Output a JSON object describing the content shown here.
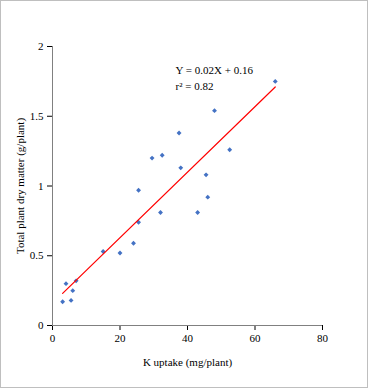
{
  "chart_data": {
    "type": "scatter",
    "x_label": "K uptake (mg/plant)",
    "y_label": "Total plant dry matter (g/plant)",
    "annotations": [
      "Y = 0.02X + 0.16",
      "r² = 0.82"
    ],
    "xlim": [
      0,
      80
    ],
    "xticks": [
      0,
      20,
      40,
      60,
      80
    ],
    "ylim": [
      0,
      2
    ],
    "yticks": [
      0,
      0.5,
      1,
      1.5,
      2
    ],
    "grid": false,
    "series": [
      {
        "type": "scatter",
        "color": "#4472c4",
        "marker": "diamond",
        "x": [
          3,
          4,
          5.5,
          6,
          7,
          15,
          20,
          24,
          25.5,
          25.5,
          29.5,
          32,
          32.5,
          37.5,
          38,
          43,
          45.5,
          46,
          48,
          52.5,
          66
        ],
        "values": [
          0.17,
          0.3,
          0.18,
          0.25,
          0.32,
          0.53,
          0.52,
          0.59,
          0.74,
          0.97,
          1.2,
          0.81,
          1.22,
          1.38,
          1.13,
          0.81,
          1.08,
          0.92,
          1.54,
          1.26,
          1.75
        ]
      },
      {
        "type": "line",
        "color": "#ff0000",
        "line_style": "solid",
        "x": [
          3,
          66
        ],
        "values": [
          0.23,
          1.71
        ]
      }
    ]
  }
}
